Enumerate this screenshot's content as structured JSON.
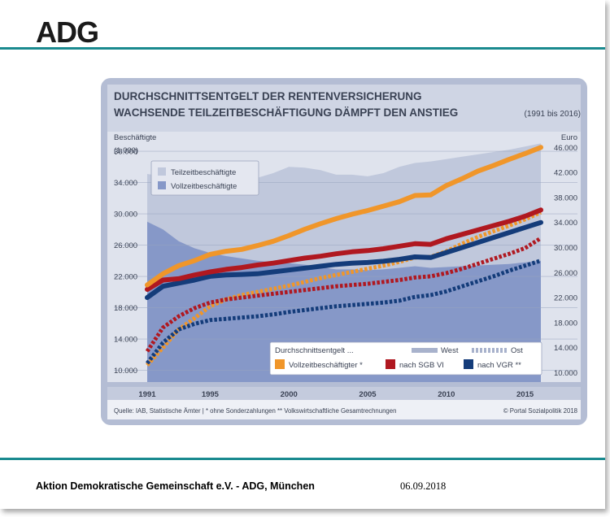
{
  "brand": {
    "logo_text": "ADG"
  },
  "footer": {
    "organization": "Aktion Demokratische Gemeinschaft e.V. - ADG, München",
    "date": "06.09.2018"
  },
  "colors": {
    "accent": "#1a8a8f",
    "frame": "#b4bdd4",
    "title": "#3a4254",
    "teilzeit_area": "#c0c8dc",
    "vollzeit_area": "#8698c8",
    "vollzeit_line": "#f0962a",
    "sgb_line": "#b01820",
    "vgr_line": "#143c7a"
  },
  "chart_data": {
    "type": "line",
    "title": "DURCHSCHNITTSENTGELT DER RENTENVERSICHERUNG",
    "subtitle": "WACHSENDE TEILZEITBESCHÄFTIGUNG DÄMPFT DEN ANSTIEG",
    "period": "(1991 bis 2016)",
    "left_axis_title": "Beschäftigte",
    "left_axis_unit": "(1.000)",
    "right_axis_title": "Euro",
    "x_tick_labels": [
      "1991",
      "1995",
      "2000",
      "2005",
      "2010",
      "2015"
    ],
    "left_tick_labels": [
      "10.000",
      "14.000",
      "18.000",
      "22.000",
      "26.000",
      "30.000",
      "34.000",
      "38.000"
    ],
    "right_tick_labels": [
      "10.000",
      "14.000",
      "18.000",
      "22.000",
      "26.000",
      "30.000",
      "34.000",
      "38.000",
      "42.000",
      "46.000"
    ],
    "left_ylim": [
      8500,
      40500
    ],
    "right_ylim": [
      8500,
      48500
    ],
    "x": [
      1991,
      1992,
      1993,
      1994,
      1995,
      1996,
      1997,
      1998,
      1999,
      2000,
      2001,
      2002,
      2003,
      2004,
      2005,
      2006,
      2007,
      2008,
      2009,
      2010,
      2011,
      2012,
      2013,
      2014,
      2015,
      2016
    ],
    "area_legend": [
      {
        "key": "teilzeit",
        "label": "Teilzeitbeschäftigte"
      },
      {
        "key": "vollzeit",
        "label": "Vollzeitbeschäftigte"
      }
    ],
    "areas": {
      "teilzeit": [
        35100,
        34800,
        34300,
        34100,
        34000,
        34200,
        34300,
        34600,
        35200,
        36000,
        35900,
        35600,
        35000,
        35000,
        34800,
        35200,
        36000,
        36500,
        36700,
        37000,
        37300,
        37600,
        37900,
        38200,
        38600,
        39000
      ],
      "vollzeit": [
        29000,
        28000,
        26500,
        25600,
        25000,
        24600,
        24300,
        24000,
        23800,
        23700,
        23500,
        23200,
        22900,
        22900,
        22800,
        22900,
        23100,
        23300,
        23100,
        23200,
        23300,
        23400,
        23500,
        23600,
        23800,
        24000
      ]
    },
    "legend_title": "Durchschnittsentgelt ...",
    "legend_region": [
      {
        "key": "west",
        "label": "West"
      },
      {
        "key": "ost",
        "label": "Ost"
      }
    ],
    "series": [
      {
        "name": "Vollzeitbeschäftigter *",
        "key": "vollzeit",
        "west": [
          24000,
          25800,
          27100,
          27900,
          28900,
          29400,
          29700,
          30300,
          31000,
          31900,
          32900,
          33800,
          34600,
          35300,
          35900,
          36600,
          37300,
          38300,
          38400,
          39900,
          41000,
          42200,
          43100,
          44100,
          45000,
          46000
        ],
        "ost": [
          11200,
          14000,
          16900,
          18700,
          20600,
          21700,
          22400,
          22900,
          23400,
          23900,
          24500,
          25100,
          25600,
          26100,
          26600,
          27100,
          27700,
          28400,
          28500,
          29400,
          30600,
          31700,
          32600,
          33500,
          34500,
          35600
        ]
      },
      {
        "name": "nach SGB VI",
        "key": "sgb",
        "west": [
          23300,
          24800,
          25000,
          25600,
          26100,
          26500,
          26800,
          27200,
          27500,
          27900,
          28300,
          28600,
          29000,
          29300,
          29500,
          29800,
          30200,
          30600,
          30500,
          31400,
          32100,
          32800,
          33500,
          34200,
          35000,
          36000
        ],
        "ost": [
          13400,
          17200,
          19000,
          20300,
          21200,
          21700,
          22000,
          22300,
          22600,
          22900,
          23200,
          23500,
          23800,
          24000,
          24200,
          24500,
          24800,
          25200,
          25400,
          25900,
          26600,
          27400,
          28200,
          29000,
          29900,
          31500
        ]
      },
      {
        "name": "nach VGR **",
        "key": "vgr",
        "west": [
          22000,
          23800,
          24300,
          24800,
          25400,
          25600,
          25700,
          25800,
          26100,
          26400,
          26700,
          27000,
          27300,
          27500,
          27600,
          27800,
          28100,
          28500,
          28400,
          29200,
          30000,
          30800,
          31600,
          32400,
          33200,
          34000
        ],
        "ost": [
          11500,
          14800,
          16900,
          17800,
          18400,
          18600,
          18800,
          19000,
          19300,
          19700,
          20000,
          20300,
          20600,
          20800,
          21000,
          21200,
          21500,
          22100,
          22400,
          23000,
          23800,
          24600,
          25400,
          26300,
          27100,
          27900
        ]
      }
    ],
    "source": "Quelle: IAB, Statistische Ämter | * ohne Sonderzahlungen ** Volkswirtschaftliche Gesamtrechnungen",
    "copyright": "© Portal Sozialpolitik 2018"
  }
}
